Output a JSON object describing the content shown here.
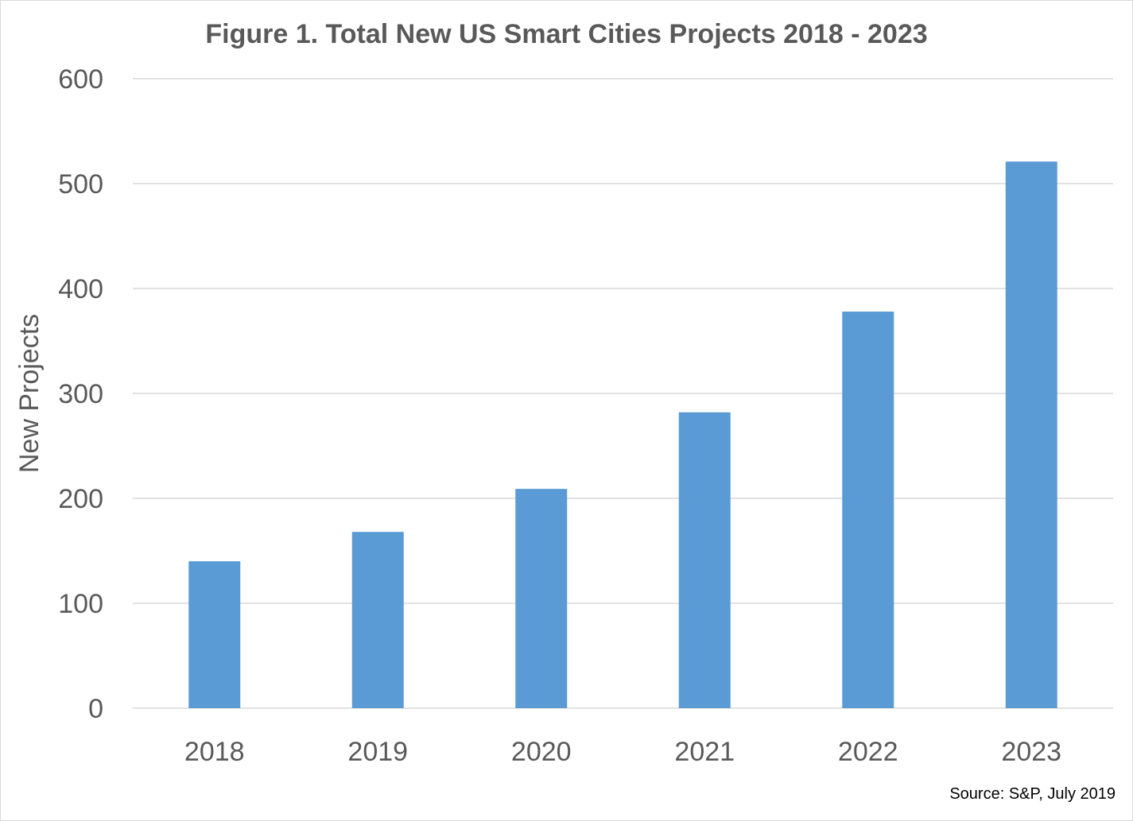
{
  "chart_data": {
    "type": "bar",
    "title": "Figure 1. Total New US Smart Cities Projects 2018 - 2023",
    "xlabel": "",
    "ylabel": "New Projects",
    "categories": [
      "2018",
      "2019",
      "2020",
      "2021",
      "2022",
      "2023"
    ],
    "series": [
      {
        "values": [
          140,
          168,
          209,
          282,
          378,
          521
        ],
        "color": "#5b9bd5"
      }
    ],
    "ylim": [
      0,
      600
    ],
    "yticks": [
      0,
      100,
      200,
      300,
      400,
      500,
      600
    ],
    "grid": true,
    "legend": "none",
    "source": "Source: S&P, July 2019"
  }
}
